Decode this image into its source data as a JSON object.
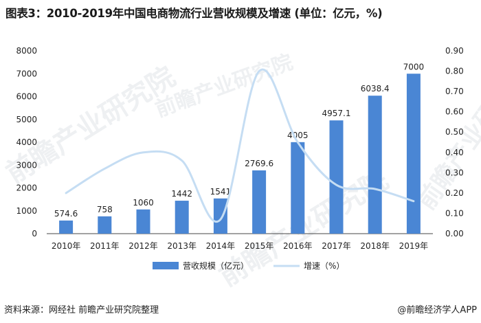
{
  "title": "图表3：2010-2019年中国电商物流行业营收规模及增速 (单位：亿元，%)",
  "footer": {
    "source": "资料来源：网经社 前瞻产业研究院整理",
    "brand": "@前瞻经济学人APP"
  },
  "watermark": "前瞻产业研究院",
  "colors": {
    "bar": "#4a86d4",
    "line": "#c5ddf3",
    "axis": "#444444"
  },
  "chart_data": {
    "type": "bar",
    "categories": [
      "2010年",
      "2011年",
      "2012年",
      "2013年",
      "2014年",
      "2015年",
      "2016年",
      "2017年",
      "2018年",
      "2019年"
    ],
    "series": [
      {
        "name": "营收规模（亿元）",
        "type": "bar",
        "axis": "left",
        "values": [
          574.6,
          758,
          1060,
          1442,
          1541,
          2769.6,
          4005,
          4957.1,
          6038.4,
          7000
        ],
        "labels": [
          "574.6",
          "758",
          "1060",
          "1442",
          "1541",
          "2769.6",
          "4005",
          "4957.1",
          "6038.4",
          "7000"
        ]
      },
      {
        "name": "增速（%）",
        "type": "line",
        "axis": "right",
        "smooth": true,
        "values": [
          0.2,
          0.32,
          0.4,
          0.36,
          0.07,
          0.8,
          0.45,
          0.24,
          0.22,
          0.16
        ]
      }
    ],
    "ylim_left": [
      0,
      8000
    ],
    "yticks_left": [
      "0",
      "1000",
      "2000",
      "3000",
      "4000",
      "5000",
      "6000",
      "7000",
      "8000"
    ],
    "ylim_right": [
      0,
      0.9
    ],
    "yticks_right": [
      "0.00",
      "0.10",
      "0.20",
      "0.30",
      "0.40",
      "0.50",
      "0.60",
      "0.70",
      "0.80",
      "0.90"
    ],
    "grid": false,
    "legend_position": "bottom-center"
  }
}
